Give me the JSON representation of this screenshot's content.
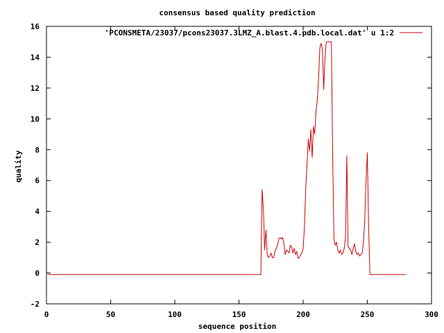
{
  "chart_data": {
    "type": "line",
    "title": "consensus based quality prediction",
    "xlabel": "sequence position",
    "ylabel": "quality",
    "xlim": [
      0,
      300
    ],
    "ylim": [
      -2,
      16
    ],
    "xticks": [
      0,
      50,
      100,
      150,
      200,
      250,
      300
    ],
    "yticks": [
      -2,
      0,
      2,
      4,
      6,
      8,
      10,
      12,
      14,
      16
    ],
    "grid": false,
    "legend_position": "top-right",
    "series": [
      {
        "name": "'PCONSMETA/23037/pcons23037.3LMZ_A.blast.4.pdb.local.dat' u 1:2",
        "color": "#cc0000",
        "points": [
          [
            1,
            -0.1
          ],
          [
            20,
            -0.1
          ],
          [
            40,
            -0.1
          ],
          [
            60,
            -0.1
          ],
          [
            80,
            -0.1
          ],
          [
            100,
            -0.1
          ],
          [
            120,
            -0.1
          ],
          [
            140,
            -0.1
          ],
          [
            160,
            -0.1
          ],
          [
            167,
            -0.1
          ],
          [
            168,
            5.4
          ],
          [
            169,
            4.2
          ],
          [
            170,
            1.5
          ],
          [
            171,
            2.8
          ],
          [
            172,
            1.2
          ],
          [
            173,
            1.0
          ],
          [
            174,
            1.1
          ],
          [
            175,
            1.3
          ],
          [
            176,
            1.0
          ],
          [
            177,
            1.0
          ],
          [
            178,
            1.4
          ],
          [
            179,
            1.6
          ],
          [
            180,
            1.8
          ],
          [
            181,
            2.2
          ],
          [
            182,
            2.3
          ],
          [
            183,
            2.2
          ],
          [
            184,
            2.3
          ],
          [
            185,
            1.9
          ],
          [
            186,
            1.2
          ],
          [
            187,
            1.5
          ],
          [
            188,
            1.4
          ],
          [
            189,
            1.3
          ],
          [
            190,
            1.8
          ],
          [
            191,
            1.7
          ],
          [
            192,
            1.3
          ],
          [
            193,
            1.6
          ],
          [
            194,
            1.2
          ],
          [
            195,
            1.4
          ],
          [
            196,
            0.95
          ],
          [
            197,
            1.0
          ],
          [
            198,
            1.2
          ],
          [
            199,
            1.3
          ],
          [
            200,
            1.6
          ],
          [
            201,
            3.0
          ],
          [
            202,
            5.5
          ],
          [
            203,
            7.0
          ],
          [
            204,
            8.7
          ],
          [
            205,
            7.9
          ],
          [
            206,
            9.3
          ],
          [
            207,
            7.5
          ],
          [
            208,
            9.5
          ],
          [
            209,
            9.0
          ],
          [
            210,
            10.5
          ],
          [
            211,
            11.2
          ],
          [
            212,
            12.6
          ],
          [
            213,
            14.6
          ],
          [
            214,
            14.9
          ],
          [
            215,
            14.5
          ],
          [
            216,
            11.9
          ],
          [
            217,
            14.0
          ],
          [
            218,
            15.0
          ],
          [
            219,
            15.0
          ],
          [
            220,
            15.0
          ],
          [
            221,
            15.0
          ],
          [
            222,
            15.0
          ],
          [
            223,
            7.5
          ],
          [
            224,
            2.2
          ],
          [
            225,
            1.8
          ],
          [
            226,
            2.0
          ],
          [
            227,
            1.5
          ],
          [
            228,
            1.3
          ],
          [
            229,
            1.5
          ],
          [
            230,
            1.2
          ],
          [
            231,
            1.3
          ],
          [
            232,
            1.6
          ],
          [
            233,
            2.3
          ],
          [
            234,
            7.6
          ],
          [
            235,
            1.7
          ],
          [
            236,
            1.6
          ],
          [
            237,
            1.5
          ],
          [
            238,
            1.2
          ],
          [
            239,
            1.6
          ],
          [
            240,
            1.9
          ],
          [
            241,
            1.4
          ],
          [
            242,
            1.2
          ],
          [
            243,
            1.3
          ],
          [
            244,
            1.1
          ],
          [
            245,
            1.2
          ],
          [
            246,
            1.3
          ],
          [
            247,
            2.0
          ],
          [
            248,
            3.5
          ],
          [
            249,
            6.0
          ],
          [
            250,
            7.8
          ],
          [
            251,
            3.0
          ],
          [
            252,
            -0.1
          ],
          [
            260,
            -0.1
          ],
          [
            270,
            -0.1
          ],
          [
            280,
            -0.1
          ]
        ]
      }
    ]
  }
}
